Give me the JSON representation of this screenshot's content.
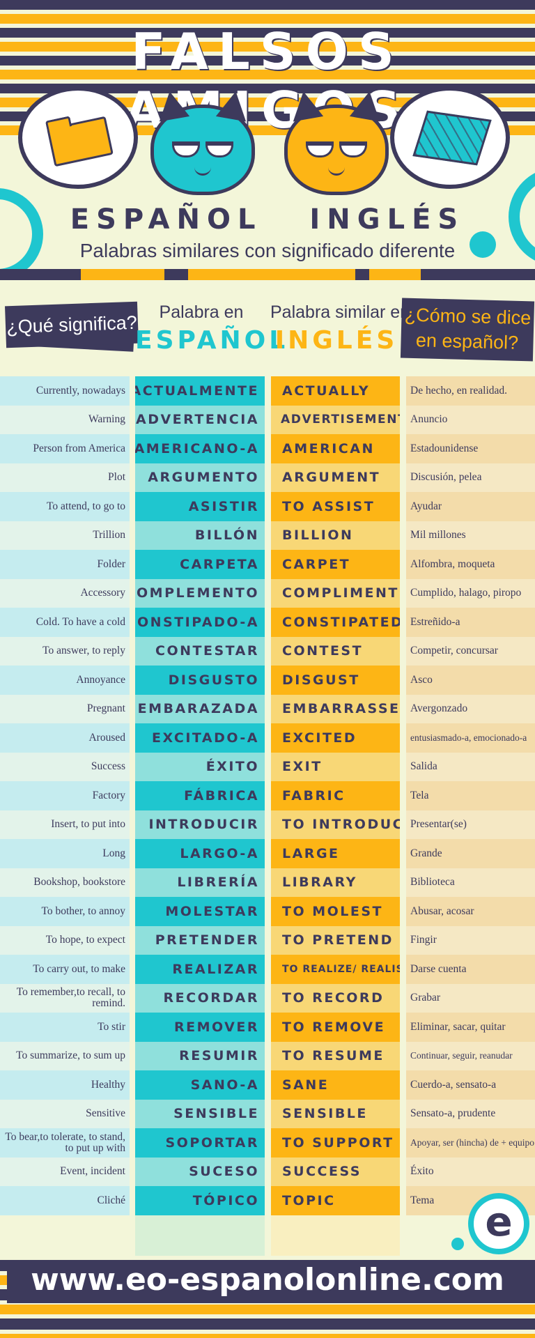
{
  "header": {
    "title": "FALSOS AMIGOS",
    "lang_left": "ESPAÑOL",
    "lang_right": "INGLÉS",
    "subtitle": "Palabras similares con significado diferente"
  },
  "columns": {
    "meaning": "¿Qué significa?",
    "spanish_small": "Palabra en",
    "spanish_big": "ESPAÑOL",
    "english_small": "Palabra similar en",
    "english_big": "INGLÉS",
    "translation": "¿Cómo se dice en español?"
  },
  "colors": {
    "navy": "#3d3a5c",
    "teal": "#1fc6cf",
    "yellow": "#fdb515",
    "cream": "#f3f6d9"
  },
  "icons": [
    "folder-icon",
    "carpet-icon",
    "teal-cat-icon",
    "yellow-cat-icon",
    "eo-logo-icon"
  ],
  "rows": [
    {
      "meaning": "Currently, nowadays",
      "es": "ACTUALMENTE",
      "en": "ACTUALLY",
      "trans": "De hecho, en realidad."
    },
    {
      "meaning": "Warning",
      "es": "ADVERTENCIA",
      "en": "ADVERTISEMENT",
      "trans": "Anuncio"
    },
    {
      "meaning": "Person from America",
      "es": "AMERICANO-A",
      "en": "AMERICAN",
      "trans": "Estadounidense"
    },
    {
      "meaning": "Plot",
      "es": "ARGUMENTO",
      "en": "ARGUMENT",
      "trans": "Discusión, pelea"
    },
    {
      "meaning": "To attend, to go to",
      "es": "ASISTIR",
      "en": "TO ASSIST",
      "trans": "Ayudar"
    },
    {
      "meaning": "Trillion",
      "es": "BILLÓN",
      "en": "BILLION",
      "trans": "Mil millones"
    },
    {
      "meaning": "Folder",
      "es": "CARPETA",
      "en": "CARPET",
      "trans": "Alfombra, moqueta"
    },
    {
      "meaning": "Accessory",
      "es": "COMPLEMENTO",
      "en": "COMPLIMENT",
      "trans": "Cumplido, halago, piropo"
    },
    {
      "meaning": "Cold. To have a cold",
      "es": "CONSTIPADO-A",
      "en": "CONSTIPATED",
      "trans": "Estreñido-a"
    },
    {
      "meaning": "To answer, to reply",
      "es": "CONTESTAR",
      "en": "CONTEST",
      "trans": "Competir, concursar"
    },
    {
      "meaning": "Annoyance",
      "es": "DISGUSTO",
      "en": "DISGUST",
      "trans": "Asco"
    },
    {
      "meaning": "Pregnant",
      "es": "EMBARAZADA",
      "en": "EMBARRASSED",
      "trans": "Avergonzado"
    },
    {
      "meaning": "Aroused",
      "es": "EXCITADO-A",
      "en": "EXCITED",
      "trans": "entusiasmado-a, emocionado-a"
    },
    {
      "meaning": "Success",
      "es": "ÉXITO",
      "en": "EXIT",
      "trans": "Salida"
    },
    {
      "meaning": "Factory",
      "es": "FÁBRICA",
      "en": "FABRIC",
      "trans": "Tela"
    },
    {
      "meaning": "Insert, to put into",
      "es": "INTRODUCIR",
      "en": "TO INTRODUCE",
      "trans": "Presentar(se)"
    },
    {
      "meaning": "Long",
      "es": "LARGO-A",
      "en": "LARGE",
      "trans": "Grande"
    },
    {
      "meaning": "Bookshop, bookstore",
      "es": "LIBRERÍA",
      "en": "LIBRARY",
      "trans": "Biblioteca"
    },
    {
      "meaning": "To bother, to annoy",
      "es": "MOLESTAR",
      "en": "TO MOLEST",
      "trans": "Abusar, acosar"
    },
    {
      "meaning": "To hope, to expect",
      "es": "PRETENDER",
      "en": "TO PRETEND",
      "trans": "Fingir"
    },
    {
      "meaning": "To carry out, to make",
      "es": "REALIZAR",
      "en": "TO REALIZE/ REALISE",
      "trans": "Darse cuenta"
    },
    {
      "meaning": "To remember,to recall, to remind.",
      "es": "RECORDAR",
      "en": "TO RECORD",
      "trans": "Grabar"
    },
    {
      "meaning": "To stir",
      "es": "REMOVER",
      "en": "TO REMOVE",
      "trans": "Eliminar, sacar, quitar"
    },
    {
      "meaning": "To summarize, to sum up",
      "es": "RESUMIR",
      "en": "TO RESUME",
      "trans": "Continuar, seguir, reanudar"
    },
    {
      "meaning": "Healthy",
      "es": "SANO-A",
      "en": "SANE",
      "trans": "Cuerdo-a, sensato-a"
    },
    {
      "meaning": "Sensitive",
      "es": "SENSIBLE",
      "en": "SENSIBLE",
      "trans": "Sensato-a, prudente"
    },
    {
      "meaning": "To bear,to tolerate, to stand, to put up with",
      "es": "SOPORTAR",
      "en": "TO SUPPORT",
      "trans": "Apoyar, ser (hincha) de + equipo"
    },
    {
      "meaning": "Event, incident",
      "es": "SUCESO",
      "en": "SUCCESS",
      "trans": "Éxito"
    },
    {
      "meaning": "Cliché",
      "es": "TÓPICO",
      "en": "TOPIC",
      "trans": "Tema"
    }
  ],
  "footer": {
    "url": "www.eo-espanolonline.com",
    "logo_letter": "e"
  }
}
